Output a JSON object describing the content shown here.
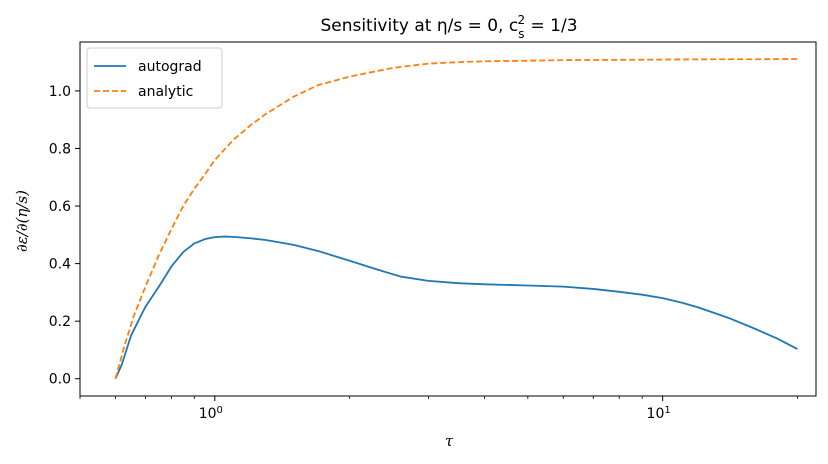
{
  "chart_data": {
    "type": "line",
    "title_main": "Sensitivity at η/s = 0, c",
    "title_sub": "s",
    "title_sup": "2",
    "title_tail": " = 1/3",
    "xlabel": "τ",
    "ylabel": "∂ε/∂(η/s)",
    "x_scale": "log",
    "xlim": [
      0.5,
      22
    ],
    "ylim": [
      -0.06,
      1.17
    ],
    "x_ticks": [
      {
        "base": "10",
        "exp": "0",
        "value": 1
      },
      {
        "base": "10",
        "exp": "1",
        "value": 10
      }
    ],
    "y_ticks": [
      0.0,
      0.2,
      0.4,
      0.6,
      0.8,
      1.0
    ],
    "y_tick_labels": [
      "0.0",
      "0.2",
      "0.4",
      "0.6",
      "0.8",
      "1.0"
    ],
    "grid": false,
    "legend_position": "top-left",
    "series": [
      {
        "name": "autograd",
        "color": "#1f77b4",
        "dash": "solid",
        "x": [
          0.6,
          0.62,
          0.65,
          0.7,
          0.75,
          0.8,
          0.85,
          0.9,
          0.95,
          1.0,
          1.05,
          1.1,
          1.2,
          1.3,
          1.5,
          1.7,
          2.0,
          2.3,
          2.6,
          3.0,
          3.5,
          4.0,
          5.0,
          6.0,
          7.0,
          8.0,
          9.0,
          10.0,
          11.0,
          12.0,
          14.0,
          16.0,
          18.0,
          20.0
        ],
        "y": [
          0.0,
          0.05,
          0.15,
          0.25,
          0.32,
          0.39,
          0.44,
          0.47,
          0.485,
          0.492,
          0.494,
          0.493,
          0.488,
          0.482,
          0.465,
          0.444,
          0.41,
          0.38,
          0.355,
          0.34,
          0.332,
          0.328,
          0.324,
          0.32,
          0.312,
          0.302,
          0.292,
          0.28,
          0.265,
          0.248,
          0.212,
          0.175,
          0.14,
          0.103
        ]
      },
      {
        "name": "analytic",
        "color": "#ff7f0e",
        "dash": "dashed",
        "x": [
          0.6,
          0.63,
          0.66,
          0.7,
          0.75,
          0.8,
          0.85,
          0.9,
          0.95,
          1.0,
          1.1,
          1.2,
          1.3,
          1.5,
          1.7,
          2.0,
          2.5,
          3.0,
          3.5,
          4.0,
          5.0,
          6.0,
          8.0,
          10.0,
          13.0,
          16.0,
          20.0
        ],
        "y": [
          0.0,
          0.12,
          0.22,
          0.32,
          0.43,
          0.52,
          0.6,
          0.66,
          0.71,
          0.76,
          0.83,
          0.88,
          0.92,
          0.98,
          1.02,
          1.05,
          1.08,
          1.095,
          1.1,
          1.103,
          1.105,
          1.107,
          1.108,
          1.109,
          1.11,
          1.11,
          1.111
        ]
      }
    ]
  }
}
